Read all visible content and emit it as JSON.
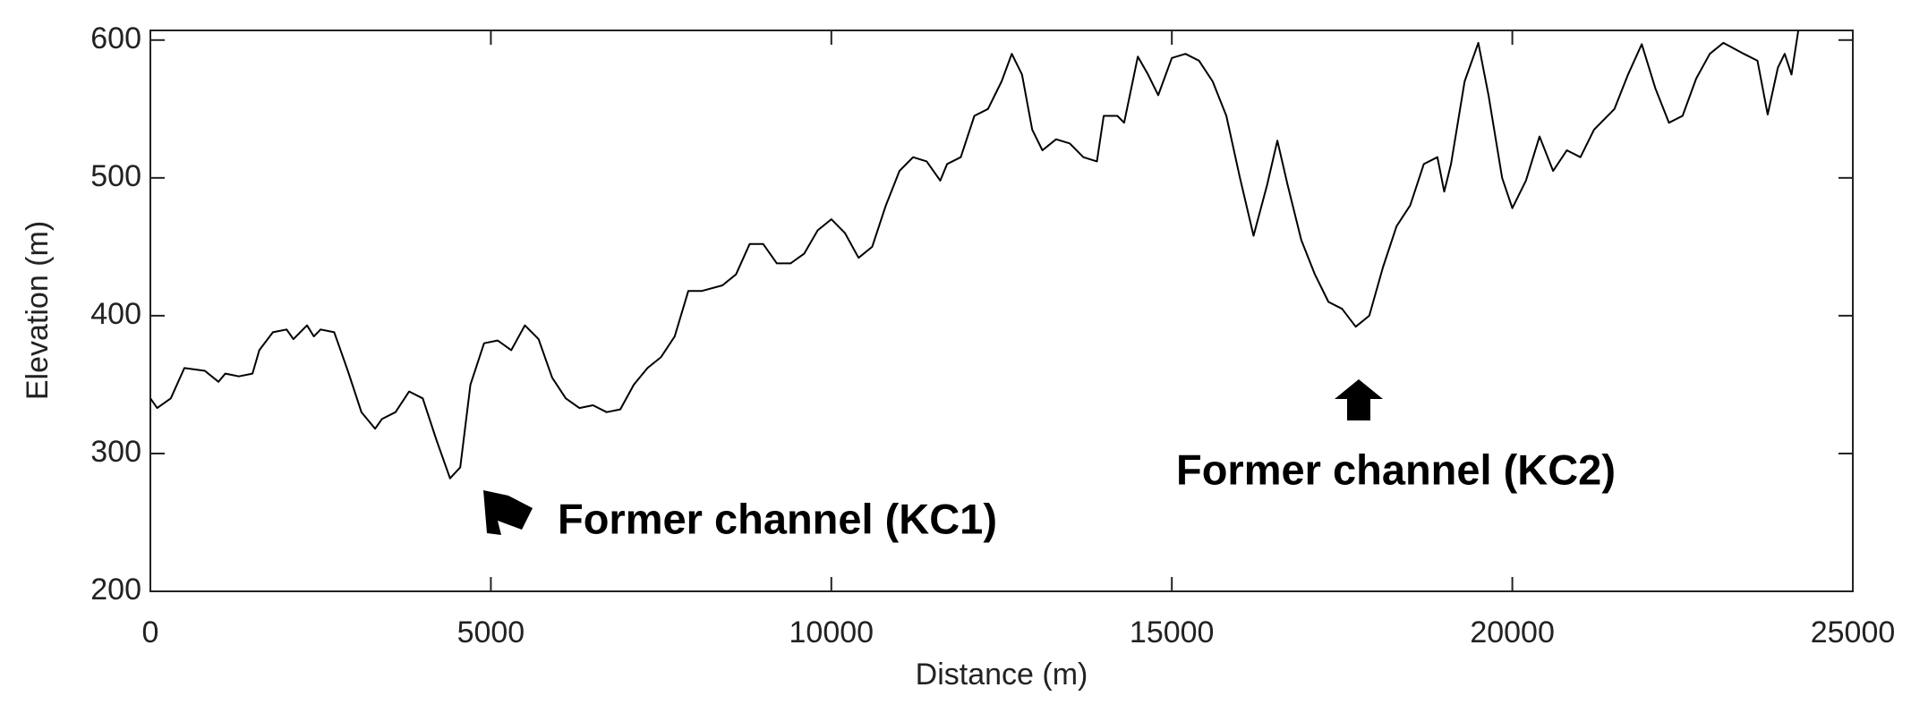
{
  "chart_data": {
    "type": "line",
    "xlabel": "Distance (m)",
    "ylabel": "Elevation (m)",
    "annotations": [
      "Former channel (KC1)",
      "Former channel (KC2)"
    ],
    "xlim": [
      0,
      25000
    ],
    "ylim": [
      200,
      607
    ],
    "xticks": [
      0,
      5000,
      10000,
      15000,
      20000,
      25000
    ],
    "yticks": [
      200,
      300,
      400,
      500,
      600
    ],
    "grid": false,
    "series": [
      {
        "color": "#000000",
        "x": [
          0,
          100,
          300,
          500,
          800,
          1000,
          1100,
          1300,
          1500,
          1600,
          1800,
          2000,
          2100,
          2300,
          2400,
          2500,
          2700,
          2900,
          3100,
          3300,
          3400,
          3600,
          3800,
          4000,
          4200,
          4400,
          4550,
          4700,
          4900,
          5100,
          5300,
          5500,
          5700,
          5900,
          6100,
          6300,
          6500,
          6700,
          6900,
          7100,
          7300,
          7500,
          7700,
          7900,
          8100,
          8400,
          8600,
          8800,
          9000,
          9200,
          9400,
          9600,
          9800,
          10000,
          10200,
          10400,
          10600,
          10800,
          11000,
          11200,
          11400,
          11600,
          11700,
          11900,
          12100,
          12300,
          12500,
          12650,
          12800,
          12950,
          13100,
          13300,
          13500,
          13700,
          13900,
          14000,
          14200,
          14300,
          14500,
          14650,
          14800,
          15000,
          15200,
          15400,
          15600,
          15800,
          16000,
          16200,
          16400,
          16550,
          16700,
          16900,
          17100,
          17300,
          17500,
          17700,
          17900,
          18100,
          18300,
          18500,
          18700,
          18900,
          19000,
          19100,
          19300,
          19500,
          19650,
          19850,
          20000,
          20200,
          20400,
          20600,
          20800,
          21000,
          21200,
          21500,
          21700,
          21900,
          22100,
          22300,
          22500,
          22700,
          22900,
          23100,
          23400,
          23600,
          23750,
          23900,
          24000,
          24100,
          24200
        ],
        "values": [
          340,
          333,
          340,
          362,
          360,
          352,
          358,
          356,
          358,
          375,
          388,
          390,
          383,
          393,
          385,
          390,
          388,
          360,
          330,
          318,
          325,
          330,
          345,
          340,
          310,
          282,
          290,
          350,
          380,
          382,
          375,
          393,
          383,
          355,
          340,
          333,
          335,
          330,
          332,
          350,
          362,
          370,
          385,
          418,
          418,
          422,
          430,
          452,
          452,
          438,
          438,
          445,
          462,
          470,
          460,
          442,
          450,
          480,
          505,
          515,
          512,
          498,
          510,
          515,
          545,
          550,
          570,
          590,
          575,
          535,
          520,
          528,
          525,
          515,
          512,
          545,
          545,
          540,
          588,
          575,
          560,
          587,
          590,
          585,
          570,
          545,
          500,
          458,
          495,
          527,
          495,
          455,
          430,
          410,
          405,
          392,
          400,
          435,
          465,
          480,
          510,
          515,
          490,
          510,
          570,
          598,
          560,
          500,
          478,
          498,
          530,
          505,
          520,
          515,
          535,
          550,
          575,
          597,
          565,
          540,
          545,
          572,
          590,
          598,
          590,
          585,
          546,
          580,
          590,
          575,
          607
        ]
      }
    ]
  }
}
